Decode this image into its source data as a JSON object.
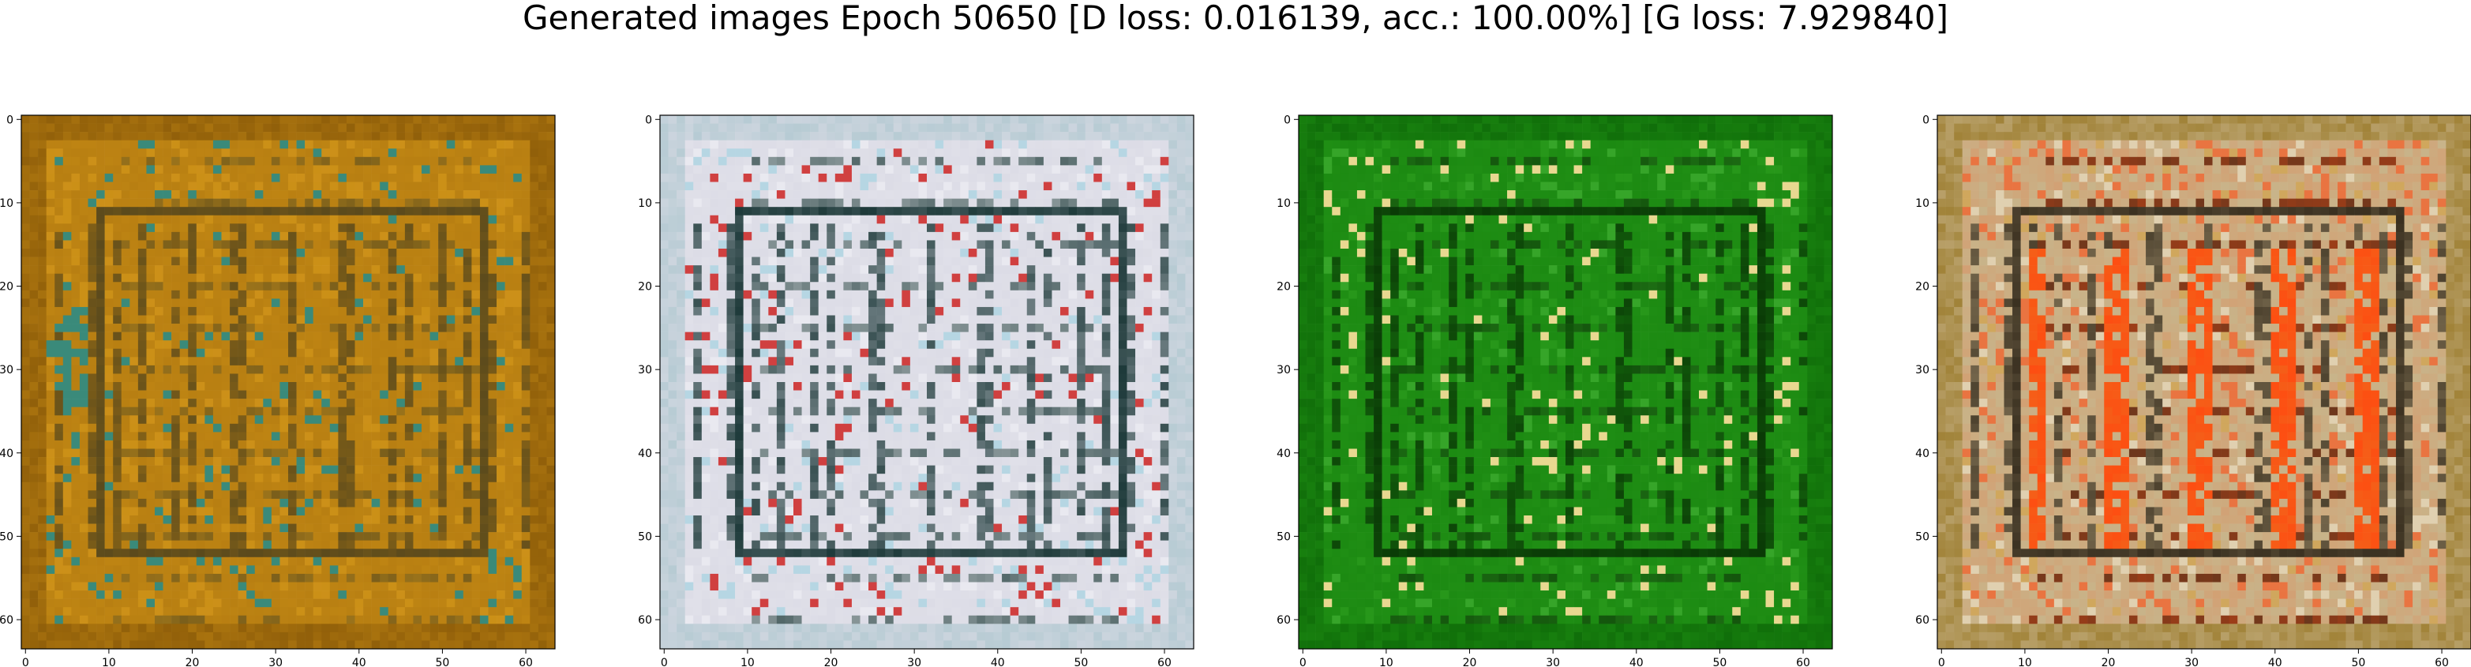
{
  "title": "Generated images Epoch 50650 [D loss: 0.016139, acc.: 100.00%] [G loss: 7.929840]",
  "axis": {
    "x_ticks": [
      "0",
      "10",
      "20",
      "30",
      "40",
      "50",
      "60"
    ],
    "y_ticks": [
      "0",
      "10",
      "20",
      "30",
      "40",
      "50",
      "60"
    ],
    "x_tick_values": [
      0,
      10,
      20,
      30,
      40,
      50,
      60
    ],
    "y_tick_values": [
      0,
      10,
      20,
      30,
      40,
      50,
      60
    ],
    "xlim": [
      -0.5,
      63.5
    ],
    "ylim": [
      63.5,
      -0.5
    ]
  },
  "panels": [
    {
      "base": "#b87f12",
      "border": "#8a5a08",
      "grid": "#5b4a1c",
      "accent": "#d89b1a",
      "accent2": "#3a8a7a",
      "highlight": "#e0a020"
    },
    {
      "base": "#dcdce6",
      "border": "#b0c8d0",
      "grid": "#1e3a3a",
      "accent": "#f2f2f6",
      "accent2": "#d04040",
      "highlight": "#8fd0e0"
    },
    {
      "base": "#1c8a12",
      "border": "#0e6a08",
      "grid": "#0a3a06",
      "accent": "#2ea020",
      "accent2": "#e8d890",
      "highlight": "#50c040"
    },
    {
      "base": "#c8b48a",
      "border": "#9a7a2a",
      "grid": "#3a3020",
      "accent": "#ff4a10",
      "accent2": "#e0d0b0",
      "highlight": "#d89a30"
    }
  ]
}
